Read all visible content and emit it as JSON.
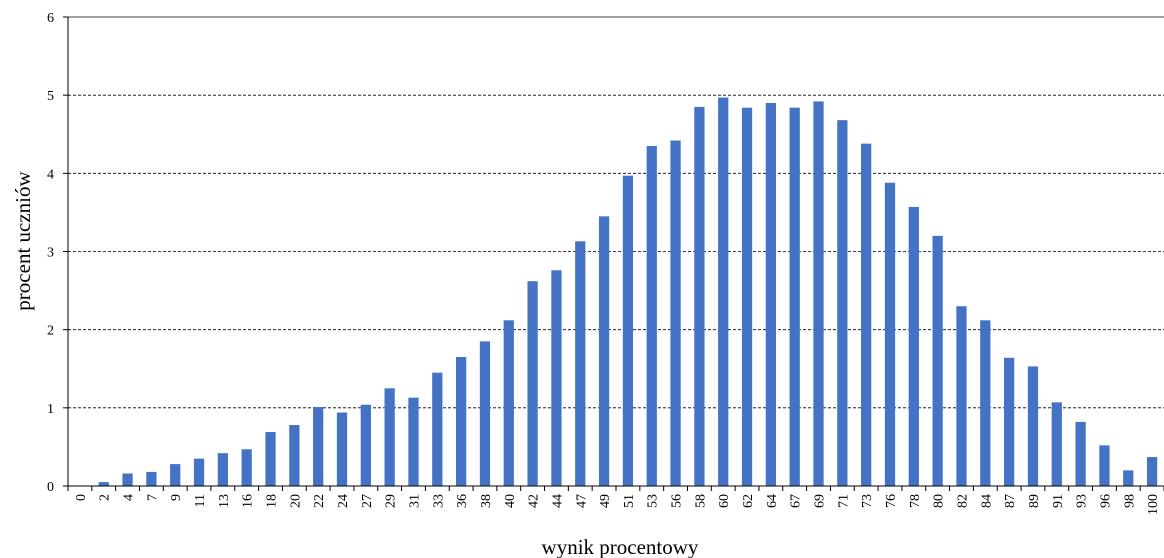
{
  "chart_data": {
    "type": "bar",
    "title": "",
    "xlabel": "wynik procentowy",
    "ylabel": "procent uczniów",
    "ylim": [
      0,
      6
    ],
    "yticks": [
      0,
      1,
      2,
      3,
      4,
      5,
      6
    ],
    "grid": "horizontal-dashed",
    "legend": "none",
    "bar_color": "#4472C4",
    "categories": [
      "0",
      "2",
      "4",
      "7",
      "9",
      "11",
      "13",
      "16",
      "18",
      "20",
      "22",
      "24",
      "27",
      "29",
      "31",
      "33",
      "36",
      "38",
      "40",
      "42",
      "44",
      "47",
      "49",
      "51",
      "53",
      "56",
      "58",
      "60",
      "62",
      "64",
      "67",
      "69",
      "71",
      "73",
      "76",
      "78",
      "80",
      "82",
      "84",
      "87",
      "89",
      "91",
      "93",
      "96",
      "98",
      "100"
    ],
    "values": [
      0,
      0.05,
      0.16,
      0.18,
      0.28,
      0.35,
      0.42,
      0.47,
      0.69,
      0.78,
      1.01,
      0.94,
      1.04,
      1.25,
      1.13,
      1.45,
      1.65,
      1.85,
      2.12,
      2.62,
      2.76,
      3.13,
      3.45,
      3.97,
      4.35,
      4.42,
      4.85,
      4.97,
      4.84,
      4.9,
      4.84,
      4.92,
      4.68,
      4.38,
      3.88,
      3.57,
      3.2,
      2.3,
      2.12,
      1.64,
      1.53,
      1.07,
      0.82,
      0.52,
      0.2,
      0.37
    ]
  }
}
